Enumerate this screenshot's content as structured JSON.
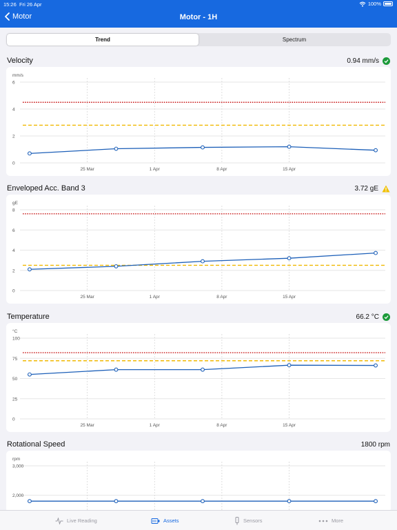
{
  "status_bar": {
    "time": "15:26",
    "date": "Fri 26 Apr",
    "battery": "100%",
    "battery_level": 1.0
  },
  "nav": {
    "back_label": "Motor",
    "title": "Motor - 1H"
  },
  "segments": {
    "trend": "Trend",
    "spectrum": "Spectrum",
    "selected": "Trend"
  },
  "sections": [
    {
      "title": "Velocity",
      "value": "0.94 mm/s",
      "status": "ok"
    },
    {
      "title": "Enveloped Acc. Band 3",
      "value": "3.72 gE",
      "status": "warning"
    },
    {
      "title": "Temperature",
      "value": "66.2 °C",
      "status": "ok"
    },
    {
      "title": "Rotational Speed",
      "value": "1800 rpm",
      "status": "none"
    }
  ],
  "colors": {
    "brand": "#1769e0",
    "line": "#1c5fb8",
    "alarm": "#c81818",
    "alert": "#f0b800",
    "ok": "#1c9a3a",
    "warning": "#f0c000"
  },
  "chart_data": [
    {
      "type": "line",
      "title": "Velocity",
      "ylabel": "mm/s",
      "ylim": [
        0,
        6
      ],
      "yticks": [
        0,
        2,
        4,
        6
      ],
      "ytick_labels": [
        "0",
        "2",
        "4",
        "6"
      ],
      "xlim": [
        "2024-03-18",
        "2024-04-25"
      ],
      "xtick_labels": [
        "25 Mar",
        "1 Apr",
        "8 Apr",
        "15 Apr"
      ],
      "xtick_dates": [
        "2024-03-25",
        "2024-04-01",
        "2024-04-08",
        "2024-04-15"
      ],
      "series": [
        {
          "x": [
            "2024-03-19",
            "2024-03-28",
            "2024-04-06",
            "2024-04-15",
            "2024-04-24"
          ],
          "y": [
            0.7,
            1.05,
            1.15,
            1.2,
            0.94
          ]
        }
      ],
      "thresholds": [
        {
          "kind": "alarm",
          "value": 4.5
        },
        {
          "kind": "alert",
          "value": 2.8
        }
      ],
      "grid": true
    },
    {
      "type": "line",
      "title": "Enveloped Acc. Band 3",
      "ylabel": "gE",
      "ylim": [
        0,
        8
      ],
      "yticks": [
        0,
        2,
        4,
        6,
        8
      ],
      "ytick_labels": [
        "0",
        "2",
        "4",
        "6",
        "8"
      ],
      "xlim": [
        "2024-03-18",
        "2024-04-25"
      ],
      "xtick_labels": [
        "25 Mar",
        "1 Apr",
        "8 Apr",
        "15 Apr"
      ],
      "xtick_dates": [
        "2024-03-25",
        "2024-04-01",
        "2024-04-08",
        "2024-04-15"
      ],
      "series": [
        {
          "x": [
            "2024-03-19",
            "2024-03-28",
            "2024-04-06",
            "2024-04-15",
            "2024-04-24"
          ],
          "y": [
            2.1,
            2.4,
            2.9,
            3.2,
            3.72
          ]
        }
      ],
      "thresholds": [
        {
          "kind": "alarm",
          "value": 7.6
        },
        {
          "kind": "alert",
          "value": 2.5
        }
      ],
      "grid": true
    },
    {
      "type": "line",
      "title": "Temperature",
      "ylabel": "°C",
      "ylim": [
        0,
        100
      ],
      "yticks": [
        0,
        25,
        50,
        75,
        100
      ],
      "ytick_labels": [
        "0",
        "25",
        "50",
        "75",
        "100"
      ],
      "xlim": [
        "2024-03-18",
        "2024-04-25"
      ],
      "xtick_labels": [
        "25 Mar",
        "1 Apr",
        "8 Apr",
        "15 Apr"
      ],
      "xtick_dates": [
        "2024-03-25",
        "2024-04-01",
        "2024-04-08",
        "2024-04-15"
      ],
      "series": [
        {
          "x": [
            "2024-03-19",
            "2024-03-28",
            "2024-04-06",
            "2024-04-15",
            "2024-04-24"
          ],
          "y": [
            55,
            61,
            61,
            66.5,
            66.2
          ]
        }
      ],
      "thresholds": [
        {
          "kind": "alarm",
          "value": 82
        },
        {
          "kind": "alert",
          "value": 72
        }
      ],
      "grid": true
    },
    {
      "type": "line",
      "title": "Rotational Speed",
      "ylabel": "rpm",
      "ylim": [
        1500,
        3000
      ],
      "yticks": [
        2000,
        3000
      ],
      "ytick_labels": [
        "2,000",
        "3,000"
      ],
      "xlim": [
        "2024-03-18",
        "2024-04-25"
      ],
      "xtick_labels": [],
      "xtick_dates": [
        "2024-03-25",
        "2024-04-01",
        "2024-04-08",
        "2024-04-15"
      ],
      "series": [
        {
          "x": [
            "2024-03-19",
            "2024-03-28",
            "2024-04-06",
            "2024-04-15",
            "2024-04-24"
          ],
          "y": [
            1800,
            1800,
            1800,
            1800,
            1800
          ]
        }
      ],
      "thresholds": [],
      "grid": true
    }
  ],
  "tabbar": {
    "items": [
      {
        "label": "Live Reading",
        "icon": "pulse-icon"
      },
      {
        "label": "Assets",
        "icon": "assets-icon",
        "active": true
      },
      {
        "label": "Sensors",
        "icon": "sensor-icon"
      },
      {
        "label": "More",
        "icon": "more-icon"
      }
    ]
  }
}
